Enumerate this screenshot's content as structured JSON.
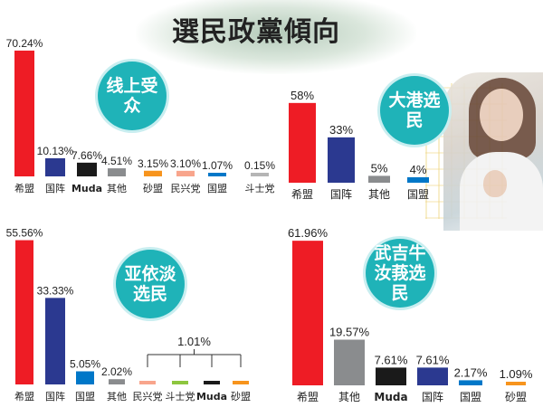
{
  "title": "選民政黨傾向",
  "colors": {
    "希盟": "#ee1c25",
    "国阵": "#2b3990",
    "Muda": "#1a1a1a",
    "其他": "#8a8c8e",
    "砂盟": "#f7941d",
    "民兴党": "#f8a58c",
    "国盟": "#0077c8",
    "斗士党": "#8dc63f",
    "斗士党_online": "#b5b5b5"
  },
  "chart_data": [
    {
      "type": "bar",
      "title": "线上受众",
      "categories": [
        "希盟",
        "国阵",
        "Muda",
        "其他",
        "砂盟",
        "民兴党",
        "国盟",
        "斗士党"
      ],
      "values": [
        70.24,
        10.13,
        7.66,
        4.51,
        3.15,
        3.1,
        1.07,
        0.15
      ],
      "labels": [
        "70.24%",
        "10.13%",
        "7.66%",
        "4.51%",
        "3.15%",
        "3.10%",
        "1.07%",
        "0.15%"
      ]
    },
    {
      "type": "bar",
      "title": "大港选民",
      "categories": [
        "希盟",
        "国阵",
        "其他",
        "国盟"
      ],
      "values": [
        58,
        33,
        5,
        4
      ],
      "labels": [
        "58%",
        "33%",
        "5%",
        "4%"
      ]
    },
    {
      "type": "bar",
      "title": "亚依淡选民",
      "categories": [
        "希盟",
        "国阵",
        "国盟",
        "其他",
        "民兴党",
        "斗士党",
        "Muda",
        "砂盟"
      ],
      "values": [
        55.56,
        33.33,
        5.05,
        2.02,
        1.01,
        1.01,
        1.01,
        1.01
      ],
      "labels": [
        "55.56%",
        "33.33%",
        "5.05%",
        "2.02%",
        "",
        "",
        "",
        ""
      ],
      "shared_label": "1.01%"
    },
    {
      "type": "bar",
      "title": "武吉牛汝莪选民",
      "categories": [
        "希盟",
        "其他",
        "Muda",
        "国阵",
        "国盟",
        "砂盟"
      ],
      "values": [
        61.96,
        19.57,
        7.61,
        7.61,
        2.17,
        1.09
      ],
      "labels": [
        "61.96%",
        "19.57%",
        "7.61%",
        "7.61%",
        "2.17%",
        "1.09%"
      ]
    }
  ]
}
